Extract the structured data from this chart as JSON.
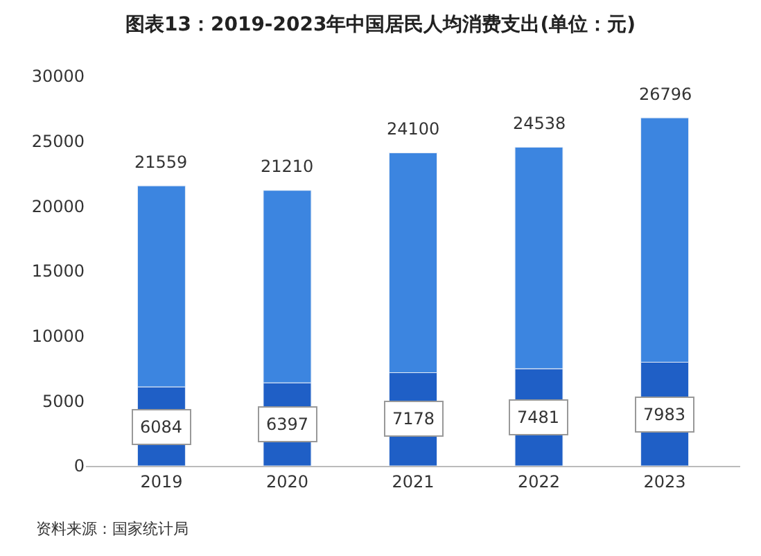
{
  "chart_data": {
    "type": "bar",
    "title": "图表13：2019-2023年中国居民人均消费支出(单位：元)",
    "categories": [
      "2019",
      "2020",
      "2021",
      "2022",
      "2023"
    ],
    "stacked": true,
    "series": [
      {
        "color": "#1f5fc6",
        "values": [
          6084,
          6397,
          7178,
          7481,
          7983
        ],
        "value_labels": [
          "6084",
          "6397",
          "7178",
          "7481",
          "7983"
        ]
      },
      {
        "color": "#3c85e0",
        "values": [
          15475,
          14813,
          16922,
          17057,
          18813
        ]
      }
    ],
    "totals": [
      "21559",
      "21210",
      "24100",
      "24538",
      "26796"
    ],
    "ylim": [
      0,
      30000
    ],
    "yticks": [
      0,
      5000,
      10000,
      15000,
      20000,
      25000,
      30000
    ],
    "annotations": [
      "资料来源：国家统计局"
    ]
  }
}
